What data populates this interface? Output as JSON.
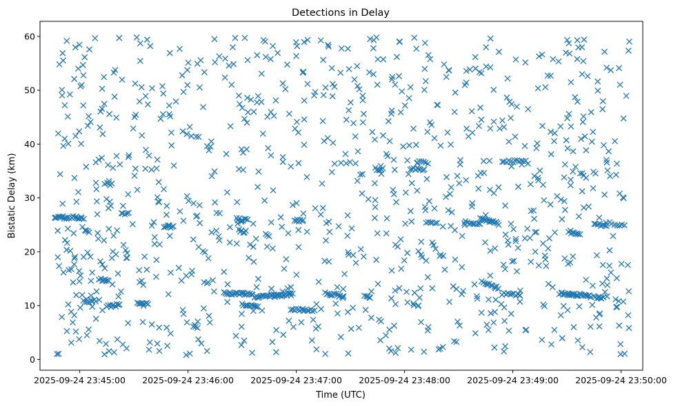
{
  "chart_data": {
    "type": "scatter",
    "title": "Detections in Delay",
    "xlabel": "Time (UTC)",
    "ylabel": "Bistatic Delay (km)",
    "x_units": "seconds after 2025-09-24 23:45:00 UTC",
    "xlim": [
      -22,
      312
    ],
    "ylim": [
      -2,
      62.8
    ],
    "x_ticks": [
      {
        "value": 0,
        "label": "2025-09-24 23:45:00"
      },
      {
        "value": 60,
        "label": "2025-09-24 23:46:00"
      },
      {
        "value": 120,
        "label": "2025-09-24 23:47:00"
      },
      {
        "value": 180,
        "label": "2025-09-24 23:48:00"
      },
      {
        "value": 240,
        "label": "2025-09-24 23:49:00"
      },
      {
        "value": 300,
        "label": "2025-09-24 23:50:00"
      }
    ],
    "y_ticks": [
      {
        "value": 0,
        "label": "0"
      },
      {
        "value": 10,
        "label": "10"
      },
      {
        "value": 20,
        "label": "20"
      },
      {
        "value": 30,
        "label": "30"
      },
      {
        "value": 40,
        "label": "40"
      },
      {
        "value": 50,
        "label": "50"
      },
      {
        "value": 60,
        "label": "60"
      }
    ],
    "series": [
      {
        "name": "detections",
        "marker": "x",
        "color": "#1f77b4",
        "tracks": [
          {
            "x_start": -14,
            "x_end": -7,
            "y_start": 26.5,
            "y_end": 26.3,
            "count": 12
          },
          {
            "x_start": -4,
            "x_end": 2,
            "y_start": 26.4,
            "y_end": 26.3,
            "count": 10
          },
          {
            "x_start": 3,
            "x_end": 5,
            "y_start": 23.8,
            "y_end": 23.5,
            "count": 4
          },
          {
            "x_start": 2,
            "x_end": 9,
            "y_start": 10.9,
            "y_end": 10.8,
            "count": 8
          },
          {
            "x_start": 12,
            "x_end": 16,
            "y_start": 14.8,
            "y_end": 14.7,
            "count": 7
          },
          {
            "x_start": 14,
            "x_end": 18,
            "y_start": 32.7,
            "y_end": 32.5,
            "count": 5
          },
          {
            "x_start": 15,
            "x_end": 22,
            "y_start": 9.9,
            "y_end": 10.1,
            "count": 10
          },
          {
            "x_start": 23,
            "x_end": 27,
            "y_start": 27.2,
            "y_end": 27.0,
            "count": 5
          },
          {
            "x_start": 32,
            "x_end": 38,
            "y_start": 10.3,
            "y_end": 10.4,
            "count": 9
          },
          {
            "x_start": 47,
            "x_end": 52,
            "y_start": 24.8,
            "y_end": 24.6,
            "count": 7
          },
          {
            "x_start": 63,
            "x_end": 65,
            "y_start": 6.3,
            "y_end": 6.1,
            "count": 4
          },
          {
            "x_start": 87,
            "x_end": 93,
            "y_start": 26.1,
            "y_end": 25.9,
            "count": 8
          },
          {
            "x_start": 88,
            "x_end": 92,
            "y_start": 23.9,
            "y_end": 23.7,
            "count": 6
          },
          {
            "x_start": 80,
            "x_end": 96,
            "y_start": 12.3,
            "y_end": 12.1,
            "count": 22
          },
          {
            "x_start": 90,
            "x_end": 99,
            "y_start": 10.1,
            "y_end": 9.9,
            "count": 12
          },
          {
            "x_start": 97,
            "x_end": 108,
            "y_start": 11.5,
            "y_end": 11.9,
            "count": 16
          },
          {
            "x_start": 108,
            "x_end": 118,
            "y_start": 11.8,
            "y_end": 12.1,
            "count": 16
          },
          {
            "x_start": 117,
            "x_end": 130,
            "y_start": 9.3,
            "y_end": 9.1,
            "count": 14
          },
          {
            "x_start": 119,
            "x_end": 124,
            "y_start": 25.7,
            "y_end": 25.9,
            "count": 7
          },
          {
            "x_start": 136,
            "x_end": 146,
            "y_start": 12.2,
            "y_end": 11.8,
            "count": 14
          },
          {
            "x_start": 158,
            "x_end": 161,
            "y_start": 11.8,
            "y_end": 11.4,
            "count": 5
          },
          {
            "x_start": 164,
            "x_end": 168,
            "y_start": 35.4,
            "y_end": 35.3,
            "count": 6
          },
          {
            "x_start": 183,
            "x_end": 191,
            "y_start": 35.4,
            "y_end": 35.3,
            "count": 9
          },
          {
            "x_start": 187,
            "x_end": 193,
            "y_start": 36.8,
            "y_end": 36.6,
            "count": 6
          },
          {
            "x_start": 192,
            "x_end": 198,
            "y_start": 25.6,
            "y_end": 25.4,
            "count": 6
          },
          {
            "x_start": 213,
            "x_end": 222,
            "y_start": 25.5,
            "y_end": 25.2,
            "count": 10
          },
          {
            "x_start": 222,
            "x_end": 232,
            "y_start": 26.3,
            "y_end": 25.2,
            "count": 16
          },
          {
            "x_start": 223,
            "x_end": 232,
            "y_start": 14.3,
            "y_end": 13.2,
            "count": 12
          },
          {
            "x_start": 234,
            "x_end": 247,
            "y_start": 36.9,
            "y_end": 36.7,
            "count": 12
          },
          {
            "x_start": 234,
            "x_end": 244,
            "y_start": 12.2,
            "y_end": 12.0,
            "count": 10
          },
          {
            "x_start": 266,
            "x_end": 283,
            "y_start": 12.3,
            "y_end": 11.8,
            "count": 26
          },
          {
            "x_start": 271,
            "x_end": 277,
            "y_start": 23.8,
            "y_end": 23.2,
            "count": 9
          },
          {
            "x_start": 285,
            "x_end": 290,
            "y_start": 11.6,
            "y_end": 11.4,
            "count": 8
          },
          {
            "x_start": 285,
            "x_end": 292,
            "y_start": 25.1,
            "y_end": 24.9,
            "count": 8
          },
          {
            "x_start": 292,
            "x_end": 302,
            "y_start": 25.3,
            "y_end": 25.0,
            "count": 8
          }
        ],
        "scatter": {
          "count": 950,
          "x_range": [
            -13,
            305
          ],
          "y_range": [
            0.8,
            59.8
          ],
          "seed": 20250924
        }
      }
    ]
  }
}
